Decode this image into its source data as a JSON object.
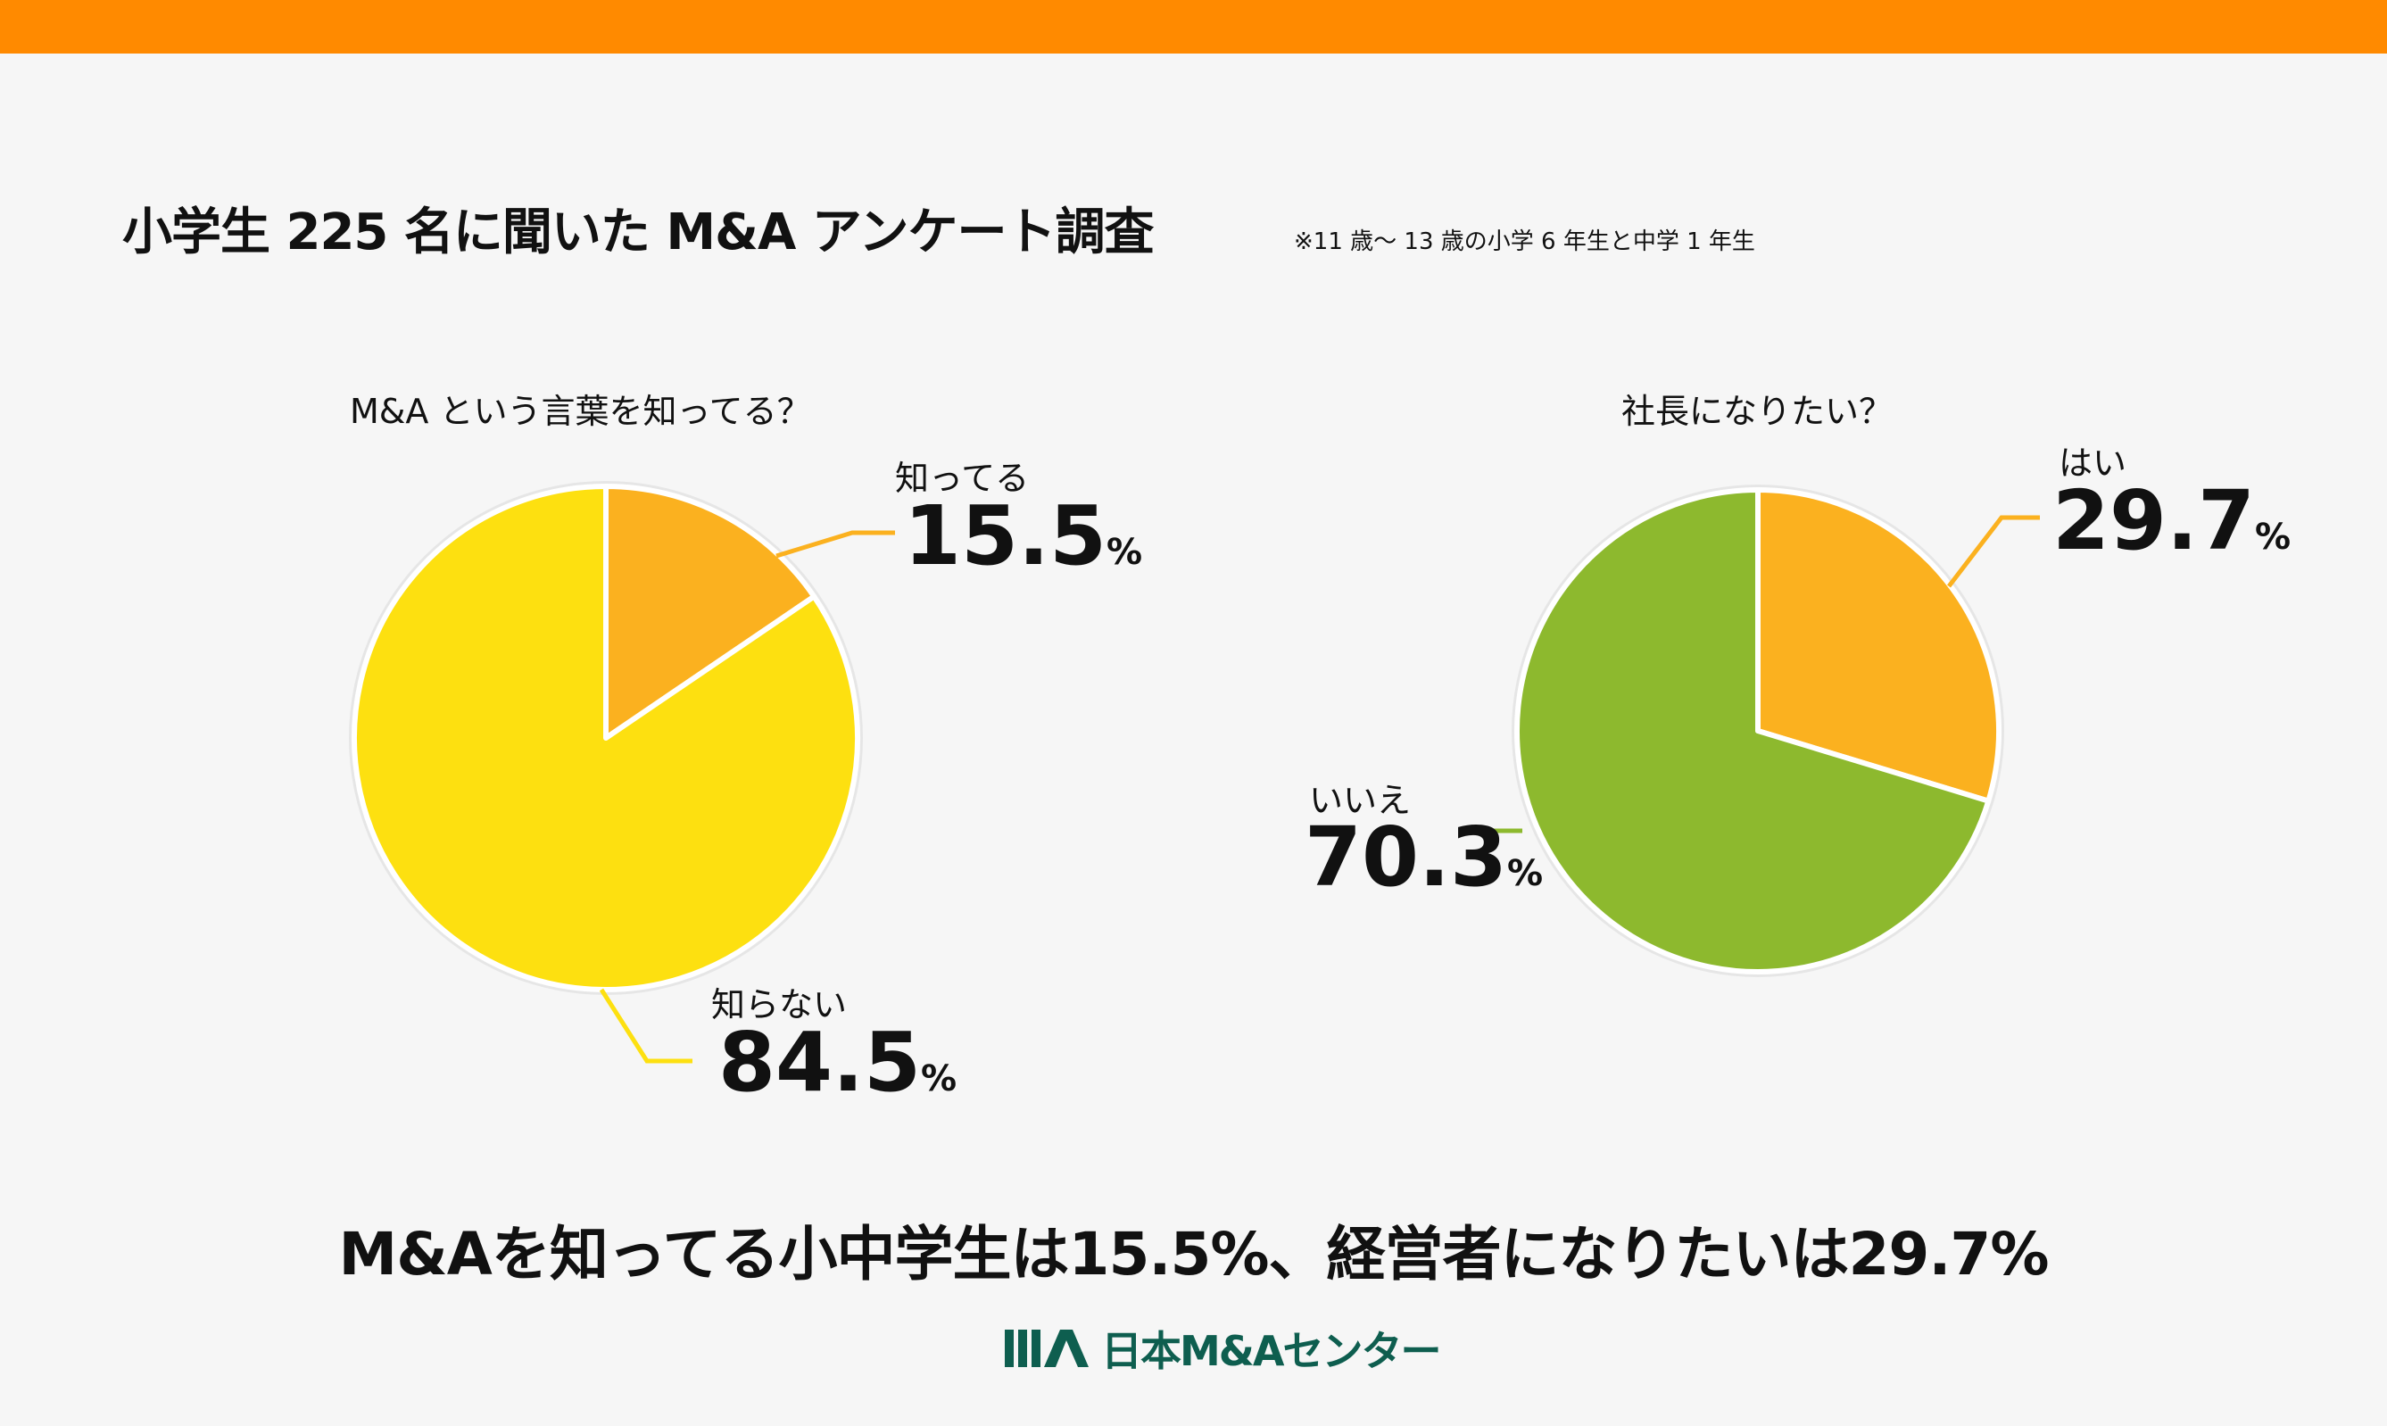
{
  "title": "小学生 225 名に聞いた M&A アンケート調査",
  "note": "※11 歳〜 13 歳の小学 6 年生と中学 1 年生",
  "summary": "M&Aを知ってる小中学生は15.5%、経営者になりたいは29.7%",
  "logo": {
    "text": "日本M&Aセンター",
    "mark": "IIIA"
  },
  "colors": {
    "header": "#ff8a00",
    "orange": "#fbb11f",
    "yellow": "#fde010",
    "green": "#8db92e",
    "logo": "#0e5e4f"
  },
  "chart_data": [
    {
      "type": "pie",
      "title": "M&A という言葉を知ってる？",
      "unit": "%",
      "slices": [
        {
          "label": "知ってる",
          "value": 15.5,
          "color": "#fbb11f"
        },
        {
          "label": "知らない",
          "value": 84.5,
          "color": "#fde010"
        }
      ]
    },
    {
      "type": "pie",
      "title": "社長になりたい？",
      "unit": "%",
      "slices": [
        {
          "label": "はい",
          "value": 29.7,
          "color": "#fbb11f"
        },
        {
          "label": "いいえ",
          "value": 70.3,
          "color": "#8db92e"
        }
      ]
    }
  ]
}
